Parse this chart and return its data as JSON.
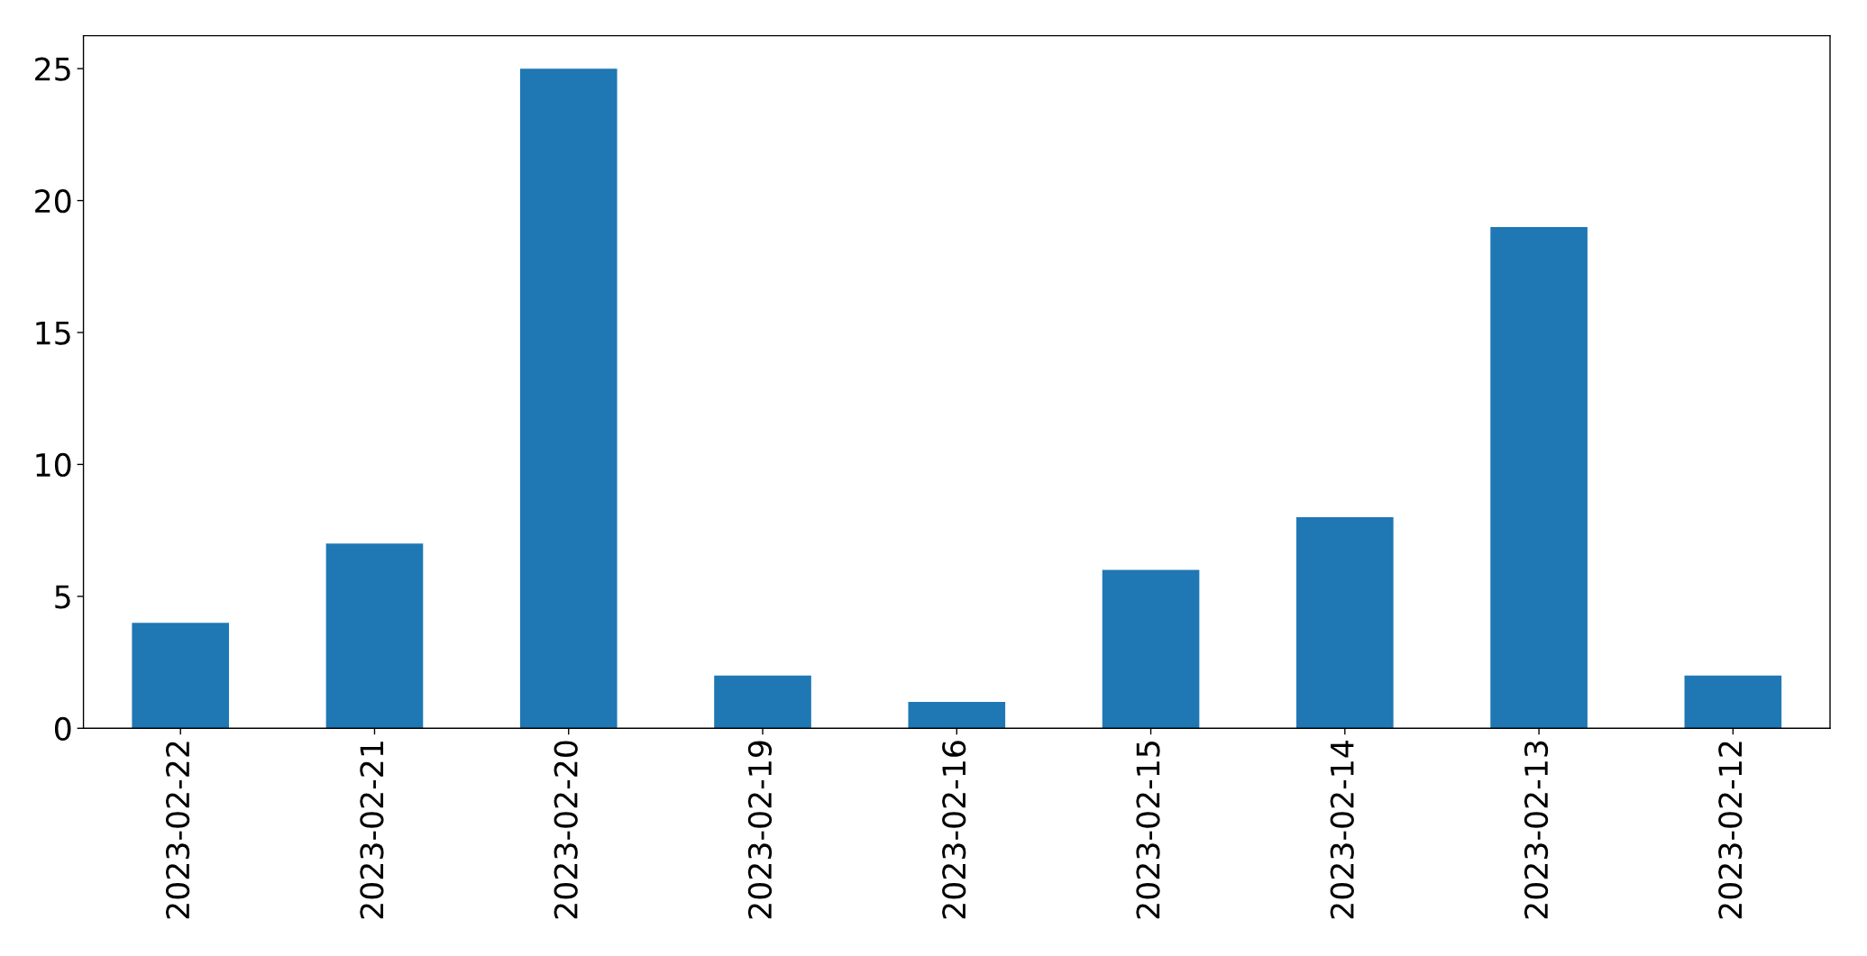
{
  "chart_data": {
    "type": "bar",
    "categories": [
      "2023-02-22",
      "2023-02-21",
      "2023-02-20",
      "2023-02-19",
      "2023-02-16",
      "2023-02-15",
      "2023-02-14",
      "2023-02-13",
      "2023-02-12"
    ],
    "values": [
      4,
      7,
      25,
      2,
      1,
      6,
      8,
      19,
      2
    ],
    "color": "#1f77b4",
    "ylim": [
      0,
      26.25
    ],
    "yticks": [
      0,
      5,
      10,
      15,
      20,
      25
    ]
  }
}
